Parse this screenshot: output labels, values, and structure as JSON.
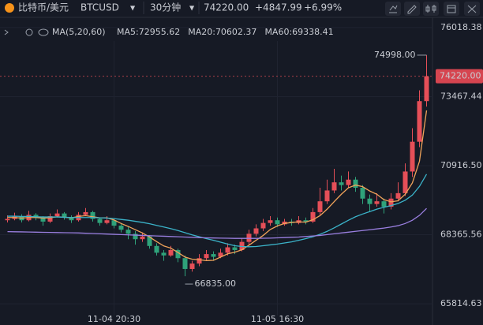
{
  "header": {
    "name": "比特币/美元",
    "symbol": "BTCUSD",
    "interval": "30分钟",
    "change": "+4847.99",
    "change_pct": "+6.99%"
  },
  "chart_data": {
    "type": "candlestick",
    "indicator": "MA(5,20,60)",
    "up_color": "#e54f58",
    "down_color": "#2fa27a",
    "categories": [
      null,
      null,
      null,
      null,
      null,
      null,
      null,
      null,
      null,
      null,
      null,
      null,
      null,
      null,
      null,
      "11-04 20:30",
      null,
      null,
      null,
      null,
      null,
      null,
      null,
      null,
      null,
      null,
      null,
      null,
      null,
      null,
      null,
      null,
      null,
      null,
      null,
      null,
      null,
      null,
      "11-05 16:30",
      null,
      null,
      null,
      null,
      null,
      null,
      null,
      null,
      null,
      null,
      null,
      null,
      null,
      null,
      null,
      null,
      null,
      null,
      null,
      null,
      null
    ],
    "candles": [
      [
        68900,
        69080,
        68820,
        68950
      ],
      [
        68950,
        69180,
        68900,
        69050
      ],
      [
        69050,
        69120,
        68820,
        68900
      ],
      [
        68900,
        69250,
        68860,
        69100
      ],
      [
        69100,
        69160,
        68900,
        69000
      ],
      [
        69000,
        69050,
        68700,
        68850
      ],
      [
        68850,
        69150,
        68800,
        69050
      ],
      [
        69050,
        69300,
        69000,
        69150
      ],
      [
        69150,
        69200,
        68920,
        69000
      ],
      [
        69000,
        69080,
        68800,
        68900
      ],
      [
        68900,
        69200,
        68850,
        69100
      ],
      [
        69100,
        69350,
        69050,
        69200
      ],
      [
        69200,
        69250,
        68850,
        68950
      ],
      [
        68950,
        69000,
        68700,
        68800
      ],
      [
        68800,
        69050,
        68750,
        68900
      ],
      [
        68900,
        68980,
        68600,
        68700
      ],
      [
        68700,
        68800,
        68450,
        68550
      ],
      [
        68550,
        68650,
        68200,
        68400
      ],
      [
        68400,
        68500,
        68000,
        68200
      ],
      [
        68200,
        68450,
        68100,
        68300
      ],
      [
        68300,
        68350,
        67850,
        67950
      ],
      [
        67950,
        68050,
        67600,
        67700
      ],
      [
        67700,
        67800,
        67400,
        67600
      ],
      [
        67600,
        67950,
        67550,
        67800
      ],
      [
        67800,
        67850,
        67350,
        67500
      ],
      [
        67500,
        67600,
        66835,
        67100
      ],
      [
        67100,
        67400,
        67000,
        67300
      ],
      [
        67300,
        67650,
        67200,
        67500
      ],
      [
        67500,
        67800,
        67400,
        67650
      ],
      [
        67650,
        67750,
        67400,
        67550
      ],
      [
        67550,
        67850,
        67500,
        67700
      ],
      [
        67700,
        68050,
        67600,
        67900
      ],
      [
        67900,
        68000,
        67650,
        67800
      ],
      [
        67800,
        68250,
        67750,
        68100
      ],
      [
        68100,
        68550,
        68000,
        68400
      ],
      [
        68400,
        68750,
        68300,
        68600
      ],
      [
        68600,
        68950,
        68500,
        68800
      ],
      [
        68800,
        69050,
        68700,
        68900
      ],
      [
        68900,
        69000,
        68650,
        68750
      ],
      [
        68750,
        68950,
        68700,
        68850
      ],
      [
        68850,
        68950,
        68700,
        68800
      ],
      [
        68800,
        69050,
        68750,
        68900
      ],
      [
        68900,
        69000,
        68750,
        68850
      ],
      [
        68850,
        69350,
        68800,
        69200
      ],
      [
        69200,
        70100,
        69100,
        69600
      ],
      [
        69600,
        70400,
        69500,
        70000
      ],
      [
        70000,
        70800,
        69900,
        70300
      ],
      [
        70300,
        70550,
        70000,
        70200
      ],
      [
        70200,
        70700,
        70100,
        70400
      ],
      [
        70400,
        70500,
        69950,
        70100
      ],
      [
        70100,
        70200,
        69500,
        69700
      ],
      [
        69700,
        69850,
        69200,
        69500
      ],
      [
        69500,
        69900,
        69400,
        69600
      ],
      [
        69600,
        69700,
        69150,
        69400
      ],
      [
        69400,
        69900,
        69300,
        69700
      ],
      [
        69700,
        70300,
        69600,
        69900
      ],
      [
        69900,
        71000,
        69800,
        70700
      ],
      [
        70700,
        72300,
        70500,
        71800
      ],
      [
        71800,
        73700,
        71600,
        73300
      ],
      [
        73300,
        74998,
        73100,
        74220
      ]
    ],
    "series": [
      {
        "name": "MA5",
        "legend": "MA5:72955.62",
        "color": "#f0a35a",
        "values": [
          69000,
          69000,
          68980,
          69000,
          69000,
          68980,
          68990,
          69030,
          69010,
          68990,
          69040,
          69070,
          69030,
          68990,
          68990,
          68910,
          68780,
          68670,
          68550,
          68430,
          68280,
          68110,
          67950,
          67870,
          67710,
          67540,
          67460,
          67440,
          67410,
          67420,
          67540,
          67660,
          67720,
          67810,
          67980,
          68160,
          68340,
          68560,
          68690,
          68780,
          68820,
          68840,
          68830,
          68920,
          69070,
          69310,
          69590,
          69860,
          70100,
          70200,
          70140,
          69980,
          69860,
          69660,
          69580,
          69620,
          69860,
          70280,
          71080,
          72955.62
        ]
      },
      {
        "name": "MA20",
        "legend": "MA20:70602.37",
        "color": "#3bb3c9",
        "values": [
          69050,
          69050,
          69040,
          69040,
          69030,
          69020,
          69020,
          69020,
          69010,
          69000,
          69000,
          69000,
          69000,
          68990,
          68980,
          68960,
          68930,
          68900,
          68860,
          68820,
          68770,
          68710,
          68650,
          68590,
          68520,
          68440,
          68360,
          68290,
          68220,
          68160,
          68090,
          68020,
          67960,
          67930,
          67920,
          67930,
          67960,
          67990,
          68020,
          68060,
          68100,
          68160,
          68220,
          68290,
          68380,
          68490,
          68620,
          68760,
          68900,
          69030,
          69130,
          69220,
          69310,
          69380,
          69440,
          69520,
          69640,
          69830,
          70150,
          70602.37
        ]
      },
      {
        "name": "MA60",
        "legend": "MA60:69338.41",
        "color": "#9a7fe0",
        "values": [
          68480,
          68475,
          68470,
          68465,
          68460,
          68455,
          68450,
          68445,
          68440,
          68435,
          68430,
          68420,
          68410,
          68400,
          68390,
          68380,
          68370,
          68360,
          68350,
          68340,
          68330,
          68320,
          68310,
          68300,
          68290,
          68280,
          68270,
          68260,
          68250,
          68245,
          68240,
          68235,
          68230,
          68230,
          68230,
          68230,
          68235,
          68240,
          68250,
          68260,
          68270,
          68280,
          68300,
          68320,
          68340,
          68370,
          68400,
          68430,
          68460,
          68490,
          68520,
          68550,
          68580,
          68610,
          68650,
          68700,
          68780,
          68900,
          69080,
          69338.41
        ]
      }
    ],
    "ylim": [
      65380,
      76220
    ],
    "yticks": [
      {
        "value": 76018.38,
        "label": "76018.38",
        "color": "#e54f58"
      },
      {
        "value": 73467.44,
        "label": "73467.44",
        "color": "#e54f58"
      },
      {
        "value": 70916.5,
        "label": "70916.50",
        "color": "#e54f58"
      },
      {
        "value": 68365.56,
        "label": "68365.56",
        "color": "#2fa27a"
      },
      {
        "value": 65814.63,
        "label": "65814.63",
        "color": "#2fa27a"
      }
    ],
    "last_price": {
      "value": 74220,
      "label": "74220.00"
    },
    "annotations": [
      {
        "value": 74998,
        "label": "74998.00"
      },
      {
        "value": 66835,
        "label": "66835.00"
      }
    ]
  }
}
